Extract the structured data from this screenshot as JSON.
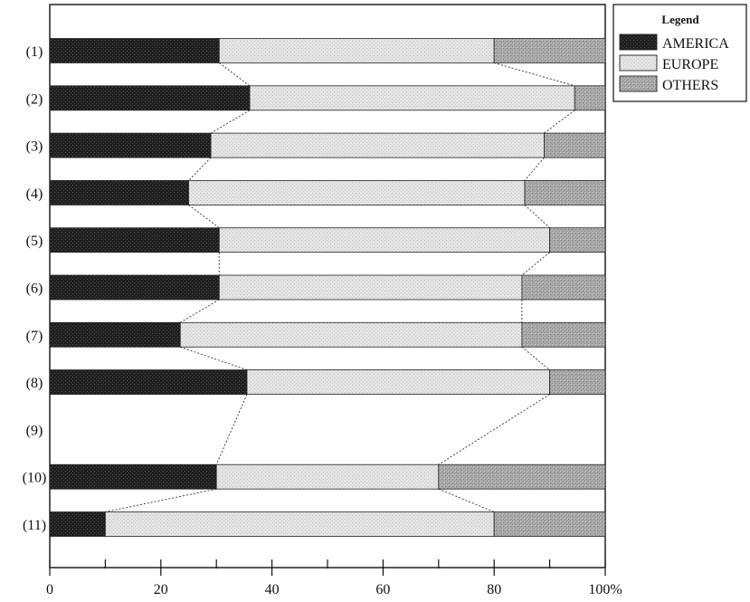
{
  "chart_data": {
    "type": "bar",
    "stacked": true,
    "orientation": "horizontal",
    "categories": [
      "(1)",
      "(2)",
      "(3)",
      "(4)",
      "(5)",
      "(6)",
      "(7)",
      "(8)",
      "(9)",
      "(10)",
      "(11)"
    ],
    "series": [
      {
        "name": "AMERICA",
        "values": [
          30.5,
          36,
          29,
          25,
          30.5,
          30.5,
          23.5,
          35.5,
          null,
          30,
          10
        ]
      },
      {
        "name": "EUROPE",
        "values": [
          49.5,
          58.5,
          60,
          60.5,
          59.5,
          54.5,
          61.5,
          54.5,
          null,
          40,
          70
        ]
      },
      {
        "name": "OTHERS",
        "values": [
          20,
          5.5,
          11,
          14.5,
          10,
          15,
          15,
          10,
          null,
          30,
          20
        ]
      }
    ],
    "xlim": [
      0,
      100
    ],
    "xticks": [
      "0",
      "20",
      "40",
      "60",
      "80",
      "100%"
    ],
    "xtick_values": [
      0,
      20,
      40,
      60,
      80,
      100
    ],
    "minor_tick_values": [
      10,
      30,
      50,
      70,
      90
    ],
    "connectors": "dotted lines join segment boundaries of adjacent bars",
    "legend": {
      "title": "Legend",
      "position": "top-right, outside plot",
      "entries": [
        "AMERICA",
        "EUROPE",
        "OTHERS"
      ]
    },
    "colors": {
      "AMERICA": "#1f1f1f",
      "EUROPE": "#e4e4e4",
      "OTHERS": "#a9a9a9"
    }
  }
}
